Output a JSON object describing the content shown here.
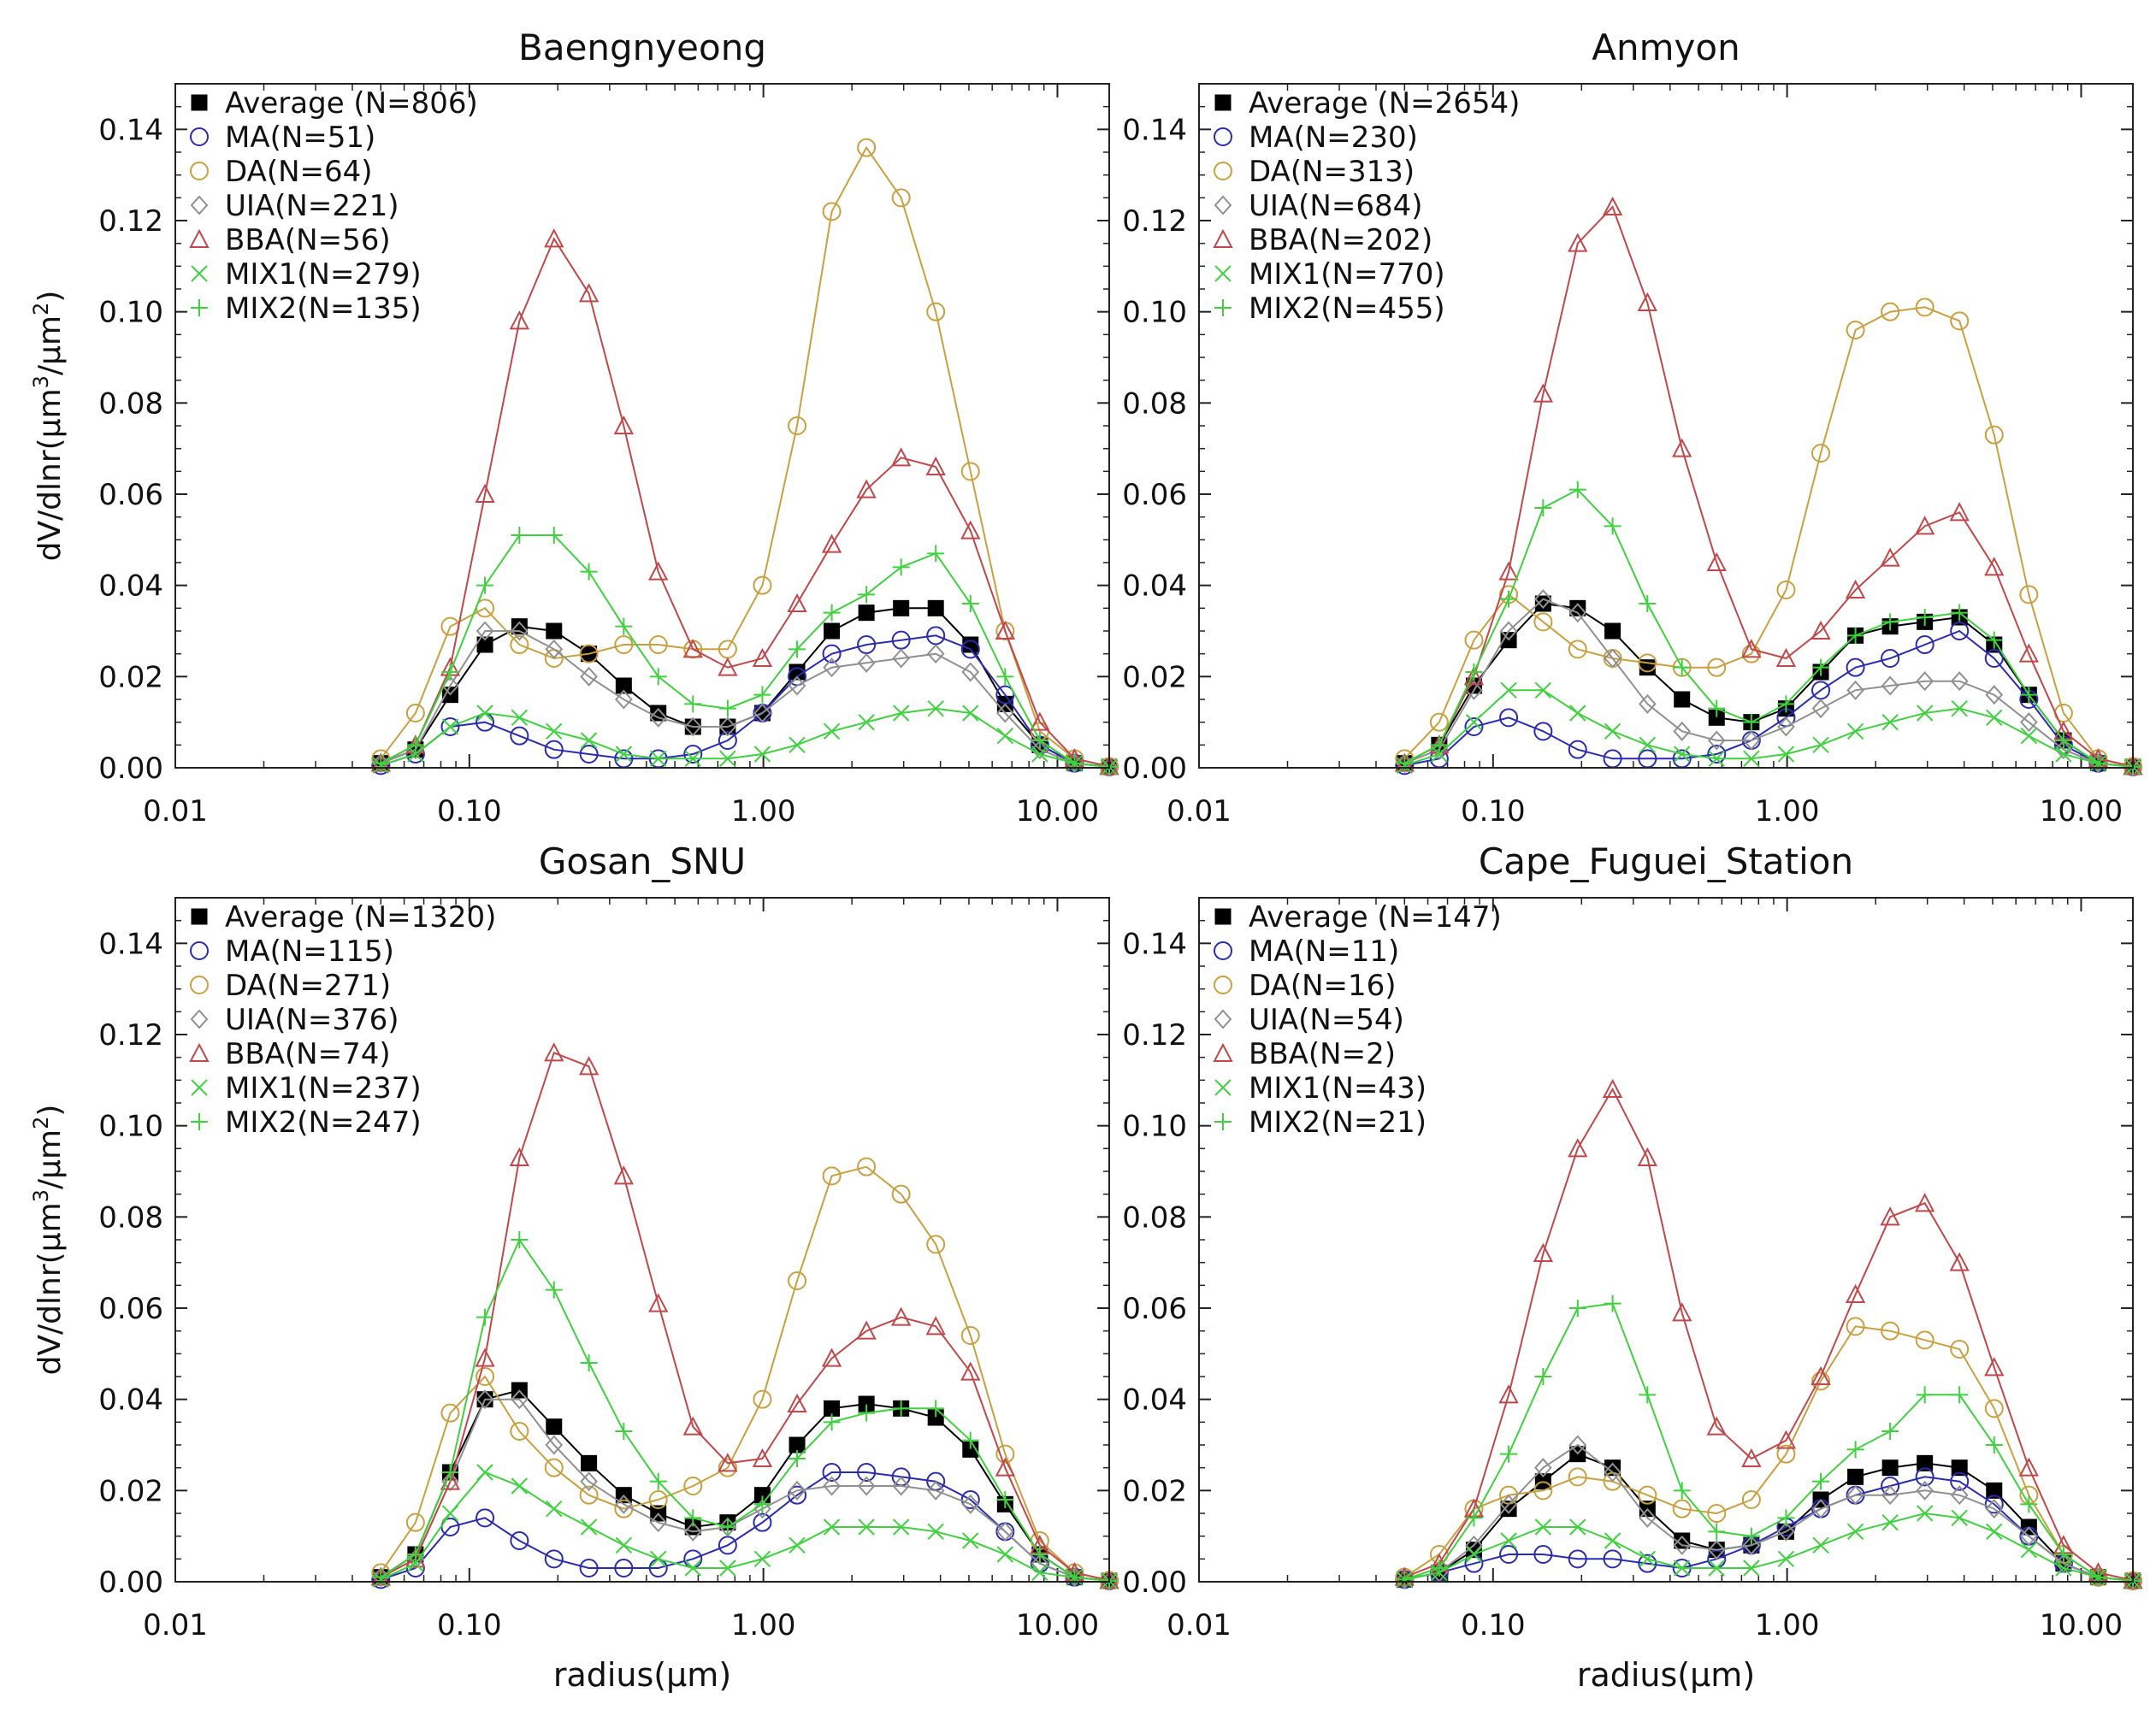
{
  "figure": {
    "x_axis_label_prefix": "radius(",
    "x_axis_label_unit": "μm",
    "x_axis_label_suffix": ")",
    "y_axis_label_prefix": "dV/dlnr(",
    "y_axis_label_num": "μm",
    "y_axis_label_num_exp": "3",
    "y_axis_label_sep": "/",
    "y_axis_label_den": "μm",
    "y_axis_label_den_exp": "2",
    "y_axis_label_suffix": ")"
  },
  "series_styles": {
    "Average": {
      "color": "#000000",
      "marker": "square"
    },
    "MA": {
      "color": "#2b2bb0",
      "marker": "circle"
    },
    "DA": {
      "color": "#c8a040",
      "marker": "circle"
    },
    "UIA": {
      "color": "#909090",
      "marker": "diamond"
    },
    "BBA": {
      "color": "#c0484b",
      "marker": "triangle"
    },
    "MIX1": {
      "color": "#40d040",
      "marker": "x"
    },
    "MIX2": {
      "color": "#40d040",
      "marker": "plus"
    }
  },
  "chart_data": [
    {
      "type": "line",
      "title": "Baengnyeong",
      "x_scale": "log",
      "xlim": [
        0.01,
        15
      ],
      "ylim": [
        0,
        0.15
      ],
      "x_ticks": [
        "0.01",
        "0.10",
        "1.00",
        "10.00"
      ],
      "y_ticks": [
        "0.00",
        "0.02",
        "0.04",
        "0.06",
        "0.08",
        "0.10",
        "0.12",
        "0.14"
      ],
      "x": [
        0.05,
        0.0656,
        0.0861,
        0.113,
        0.148,
        0.194,
        0.255,
        0.335,
        0.439,
        0.576,
        0.756,
        0.992,
        1.302,
        1.708,
        2.241,
        2.94,
        3.857,
        5.061,
        6.641,
        8.713,
        11.432,
        15.0
      ],
      "series": [
        {
          "name": "Average",
          "legend": "Average  (N=806)",
          "values": [
            0.001,
            0.004,
            0.016,
            0.027,
            0.031,
            0.03,
            0.025,
            0.018,
            0.012,
            0.009,
            0.009,
            0.012,
            0.021,
            0.03,
            0.034,
            0.035,
            0.035,
            0.027,
            0.014,
            0.005,
            0.001,
            0.0002
          ]
        },
        {
          "name": "MA",
          "legend": "MA(N=51)",
          "values": [
            0.0005,
            0.003,
            0.009,
            0.01,
            0.007,
            0.004,
            0.003,
            0.002,
            0.002,
            0.003,
            0.006,
            0.012,
            0.02,
            0.025,
            0.027,
            0.028,
            0.029,
            0.026,
            0.016,
            0.005,
            0.001,
            0.0002
          ]
        },
        {
          "name": "DA",
          "legend": "DA(N=64)",
          "values": [
            0.002,
            0.012,
            0.031,
            0.035,
            0.027,
            0.024,
            0.025,
            0.027,
            0.027,
            0.026,
            0.026,
            0.04,
            0.075,
            0.122,
            0.136,
            0.125,
            0.1,
            0.065,
            0.03,
            0.008,
            0.002,
            0.0003
          ]
        },
        {
          "name": "UIA",
          "legend": "UIA(N=221)",
          "values": [
            0.001,
            0.004,
            0.018,
            0.03,
            0.03,
            0.026,
            0.02,
            0.015,
            0.011,
            0.009,
            0.009,
            0.012,
            0.018,
            0.022,
            0.023,
            0.024,
            0.025,
            0.021,
            0.012,
            0.004,
            0.001,
            0.0002
          ]
        },
        {
          "name": "BBA",
          "legend": "BBA(N=56)",
          "values": [
            0.001,
            0.005,
            0.022,
            0.06,
            0.098,
            0.116,
            0.104,
            0.075,
            0.043,
            0.026,
            0.022,
            0.024,
            0.036,
            0.049,
            0.061,
            0.068,
            0.066,
            0.052,
            0.03,
            0.01,
            0.002,
            0.0003
          ]
        },
        {
          "name": "MIX1",
          "legend": "MIX1(N=279)",
          "values": [
            0.0005,
            0.003,
            0.009,
            0.012,
            0.011,
            0.008,
            0.006,
            0.003,
            0.002,
            0.002,
            0.002,
            0.003,
            0.005,
            0.008,
            0.01,
            0.012,
            0.013,
            0.012,
            0.007,
            0.003,
            0.001,
            0.0002
          ]
        },
        {
          "name": "MIX2",
          "legend": "MIX2(N=135)",
          "values": [
            0.001,
            0.005,
            0.021,
            0.04,
            0.051,
            0.051,
            0.043,
            0.031,
            0.02,
            0.014,
            0.013,
            0.016,
            0.026,
            0.034,
            0.038,
            0.044,
            0.047,
            0.036,
            0.02,
            0.006,
            0.001,
            0.0002
          ]
        }
      ]
    },
    {
      "type": "line",
      "title": "Anmyon",
      "x_scale": "log",
      "xlim": [
        0.01,
        15
      ],
      "ylim": [
        0,
        0.15
      ],
      "x_ticks": [
        "0.01",
        "0.10",
        "1.00",
        "10.00"
      ],
      "y_ticks": [
        "0.00",
        "0.02",
        "0.04",
        "0.06",
        "0.08",
        "0.10",
        "0.12",
        "0.14"
      ],
      "x": [
        0.05,
        0.0656,
        0.0861,
        0.113,
        0.148,
        0.194,
        0.255,
        0.335,
        0.439,
        0.576,
        0.756,
        0.992,
        1.302,
        1.708,
        2.241,
        2.94,
        3.857,
        5.061,
        6.641,
        8.713,
        11.432,
        15.0
      ],
      "series": [
        {
          "name": "Average",
          "legend": "Average  (N=2654)",
          "values": [
            0.001,
            0.005,
            0.018,
            0.028,
            0.036,
            0.035,
            0.03,
            0.022,
            0.015,
            0.011,
            0.01,
            0.013,
            0.021,
            0.029,
            0.031,
            0.032,
            0.033,
            0.027,
            0.016,
            0.006,
            0.001,
            0.0002
          ]
        },
        {
          "name": "MA",
          "legend": "MA(N=230)",
          "values": [
            0.0005,
            0.002,
            0.009,
            0.011,
            0.008,
            0.004,
            0.002,
            0.002,
            0.002,
            0.003,
            0.006,
            0.011,
            0.017,
            0.022,
            0.024,
            0.027,
            0.03,
            0.024,
            0.015,
            0.005,
            0.001,
            0.0002
          ]
        },
        {
          "name": "DA",
          "legend": "DA(N=313)",
          "values": [
            0.002,
            0.01,
            0.028,
            0.038,
            0.032,
            0.026,
            0.024,
            0.023,
            0.022,
            0.022,
            0.025,
            0.039,
            0.069,
            0.096,
            0.1,
            0.101,
            0.098,
            0.073,
            0.038,
            0.012,
            0.002,
            0.0003
          ]
        },
        {
          "name": "UIA",
          "legend": "UIA(N=684)",
          "values": [
            0.001,
            0.004,
            0.017,
            0.03,
            0.037,
            0.034,
            0.024,
            0.014,
            0.008,
            0.006,
            0.006,
            0.009,
            0.013,
            0.017,
            0.018,
            0.019,
            0.019,
            0.016,
            0.01,
            0.004,
            0.001,
            0.0002
          ]
        },
        {
          "name": "BBA",
          "legend": "BBA(N=202)",
          "values": [
            0.001,
            0.005,
            0.02,
            0.043,
            0.082,
            0.115,
            0.123,
            0.102,
            0.07,
            0.045,
            0.026,
            0.024,
            0.03,
            0.039,
            0.046,
            0.053,
            0.056,
            0.044,
            0.025,
            0.008,
            0.002,
            0.0003
          ]
        },
        {
          "name": "MIX1",
          "legend": "MIX1(N=770)",
          "values": [
            0.0005,
            0.003,
            0.01,
            0.017,
            0.017,
            0.012,
            0.008,
            0.005,
            0.003,
            0.002,
            0.002,
            0.003,
            0.005,
            0.008,
            0.01,
            0.012,
            0.013,
            0.011,
            0.007,
            0.003,
            0.001,
            0.0002
          ]
        },
        {
          "name": "MIX2",
          "legend": "MIX2(N=455)",
          "values": [
            0.001,
            0.005,
            0.021,
            0.037,
            0.057,
            0.061,
            0.053,
            0.036,
            0.022,
            0.013,
            0.01,
            0.014,
            0.022,
            0.029,
            0.032,
            0.033,
            0.034,
            0.028,
            0.016,
            0.006,
            0.001,
            0.0002
          ]
        }
      ]
    },
    {
      "type": "line",
      "title": "Gosan_SNU",
      "x_scale": "log",
      "xlim": [
        0.01,
        15
      ],
      "ylim": [
        0,
        0.15
      ],
      "x_ticks": [
        "0.01",
        "0.10",
        "1.00",
        "10.00"
      ],
      "y_ticks": [
        "0.00",
        "0.02",
        "0.04",
        "0.06",
        "0.08",
        "0.10",
        "0.12",
        "0.14"
      ],
      "x": [
        0.05,
        0.0656,
        0.0861,
        0.113,
        0.148,
        0.194,
        0.255,
        0.335,
        0.439,
        0.576,
        0.756,
        0.992,
        1.302,
        1.708,
        2.241,
        2.94,
        3.857,
        5.061,
        6.641,
        8.713,
        11.432,
        15.0
      ],
      "series": [
        {
          "name": "Average",
          "legend": "Average  (N=1320)",
          "values": [
            0.001,
            0.006,
            0.024,
            0.04,
            0.042,
            0.034,
            0.026,
            0.019,
            0.015,
            0.012,
            0.013,
            0.019,
            0.03,
            0.038,
            0.039,
            0.038,
            0.036,
            0.029,
            0.017,
            0.006,
            0.001,
            0.0002
          ]
        },
        {
          "name": "MA",
          "legend": "MA(N=115)",
          "values": [
            0.0005,
            0.003,
            0.012,
            0.014,
            0.009,
            0.005,
            0.003,
            0.003,
            0.003,
            0.005,
            0.008,
            0.013,
            0.019,
            0.024,
            0.024,
            0.023,
            0.022,
            0.018,
            0.011,
            0.004,
            0.001,
            0.0002
          ]
        },
        {
          "name": "DA",
          "legend": "DA(N=271)",
          "values": [
            0.002,
            0.013,
            0.037,
            0.045,
            0.033,
            0.025,
            0.019,
            0.016,
            0.018,
            0.021,
            0.025,
            0.04,
            0.066,
            0.089,
            0.091,
            0.085,
            0.074,
            0.054,
            0.028,
            0.009,
            0.002,
            0.0003
          ]
        },
        {
          "name": "UIA",
          "legend": "UIA(N=376)",
          "values": [
            0.001,
            0.005,
            0.022,
            0.04,
            0.04,
            0.03,
            0.022,
            0.017,
            0.013,
            0.011,
            0.012,
            0.016,
            0.02,
            0.021,
            0.021,
            0.021,
            0.02,
            0.017,
            0.011,
            0.004,
            0.001,
            0.0002
          ]
        },
        {
          "name": "BBA",
          "legend": "BBA(N=74)",
          "values": [
            0.001,
            0.005,
            0.022,
            0.049,
            0.093,
            0.116,
            0.113,
            0.089,
            0.061,
            0.034,
            0.026,
            0.027,
            0.039,
            0.049,
            0.055,
            0.058,
            0.056,
            0.046,
            0.025,
            0.008,
            0.002,
            0.0003
          ]
        },
        {
          "name": "MIX1",
          "legend": "MIX1(N=237)",
          "values": [
            0.0005,
            0.004,
            0.015,
            0.024,
            0.021,
            0.016,
            0.012,
            0.008,
            0.005,
            0.003,
            0.003,
            0.005,
            0.008,
            0.012,
            0.012,
            0.012,
            0.011,
            0.009,
            0.006,
            0.002,
            0.001,
            0.0002
          ]
        },
        {
          "name": "MIX2",
          "legend": "MIX2(N=247)",
          "values": [
            0.001,
            0.006,
            0.024,
            0.058,
            0.075,
            0.064,
            0.048,
            0.033,
            0.022,
            0.014,
            0.012,
            0.017,
            0.027,
            0.035,
            0.037,
            0.038,
            0.038,
            0.031,
            0.018,
            0.006,
            0.001,
            0.0002
          ]
        }
      ]
    },
    {
      "type": "line",
      "title": "Cape_Fuguei_Station",
      "x_scale": "log",
      "xlim": [
        0.01,
        15
      ],
      "ylim": [
        0,
        0.15
      ],
      "x_ticks": [
        "0.01",
        "0.10",
        "1.00",
        "10.00"
      ],
      "y_ticks": [
        "0.00",
        "0.02",
        "0.04",
        "0.06",
        "0.08",
        "0.10",
        "0.12",
        "0.14"
      ],
      "x": [
        0.05,
        0.0656,
        0.0861,
        0.113,
        0.148,
        0.194,
        0.255,
        0.335,
        0.439,
        0.576,
        0.756,
        0.992,
        1.302,
        1.708,
        2.241,
        2.94,
        3.857,
        5.061,
        6.641,
        8.713,
        11.432,
        15.0
      ],
      "series": [
        {
          "name": "Average",
          "legend": "Average  (N=147)",
          "values": [
            0.0005,
            0.002,
            0.007,
            0.016,
            0.022,
            0.028,
            0.025,
            0.016,
            0.009,
            0.007,
            0.008,
            0.011,
            0.018,
            0.023,
            0.025,
            0.026,
            0.025,
            0.02,
            0.012,
            0.004,
            0.001,
            0.0002
          ]
        },
        {
          "name": "MA",
          "legend": "MA(N=11)",
          "values": [
            0.0005,
            0.002,
            0.004,
            0.006,
            0.006,
            0.005,
            0.005,
            0.004,
            0.003,
            0.005,
            0.008,
            0.012,
            0.016,
            0.019,
            0.021,
            0.023,
            0.022,
            0.017,
            0.01,
            0.004,
            0.001,
            0.0002
          ]
        },
        {
          "name": "DA",
          "legend": "DA(N=16)",
          "values": [
            0.001,
            0.006,
            0.016,
            0.019,
            0.02,
            0.023,
            0.022,
            0.019,
            0.016,
            0.015,
            0.018,
            0.028,
            0.044,
            0.056,
            0.055,
            0.053,
            0.051,
            0.038,
            0.019,
            0.006,
            0.001,
            0.0002
          ]
        },
        {
          "name": "UIA",
          "legend": "UIA(N=54)",
          "values": [
            0.0005,
            0.002,
            0.008,
            0.017,
            0.025,
            0.03,
            0.024,
            0.014,
            0.008,
            0.007,
            0.008,
            0.011,
            0.016,
            0.019,
            0.019,
            0.02,
            0.019,
            0.016,
            0.01,
            0.004,
            0.001,
            0.0002
          ]
        },
        {
          "name": "BBA",
          "legend": "BBA(N=2)",
          "values": [
            0.001,
            0.004,
            0.016,
            0.041,
            0.072,
            0.095,
            0.108,
            0.093,
            0.059,
            0.034,
            0.027,
            0.031,
            0.045,
            0.063,
            0.08,
            0.083,
            0.07,
            0.047,
            0.025,
            0.008,
            0.002,
            0.0003
          ]
        },
        {
          "name": "MIX1",
          "legend": "MIX1(N=43)",
          "values": [
            0.0005,
            0.002,
            0.006,
            0.009,
            0.012,
            0.012,
            0.009,
            0.005,
            0.003,
            0.003,
            0.003,
            0.005,
            0.008,
            0.011,
            0.013,
            0.015,
            0.014,
            0.011,
            0.007,
            0.003,
            0.001,
            0.0002
          ]
        },
        {
          "name": "MIX2",
          "legend": "MIX2(N=21)",
          "values": [
            0.0005,
            0.003,
            0.014,
            0.028,
            0.045,
            0.06,
            0.061,
            0.041,
            0.02,
            0.011,
            0.01,
            0.014,
            0.022,
            0.029,
            0.033,
            0.041,
            0.041,
            0.03,
            0.017,
            0.006,
            0.001,
            0.0002
          ]
        }
      ]
    }
  ]
}
